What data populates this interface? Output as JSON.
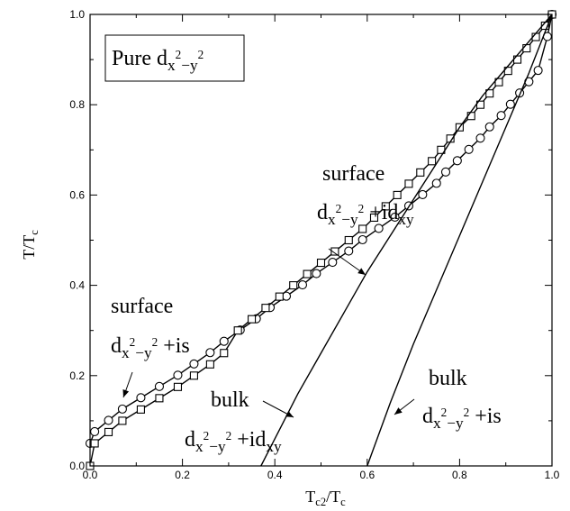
{
  "chart_data": {
    "type": "line",
    "xlabel": "T_c2/T_c",
    "ylabel": "T/T_c",
    "xlim": [
      0,
      1
    ],
    "ylim": [
      0,
      1
    ],
    "x_ticks": [
      "0.0",
      "0.2",
      "0.4",
      "0.6",
      "0.8",
      "1.0"
    ],
    "y_ticks": [
      "0.0",
      "0.2",
      "0.4",
      "0.6",
      "0.8",
      "1.0"
    ],
    "legend_box": "Pure d_{x²−y²}",
    "series": [
      {
        "marker": "circle",
        "x": [
          0.0,
          0.01,
          0.04,
          0.07,
          0.11,
          0.15,
          0.19,
          0.225,
          0.26,
          0.29,
          0.325,
          0.36,
          0.39,
          0.425,
          0.46,
          0.49,
          0.525,
          0.56,
          0.59,
          0.625,
          0.66,
          0.69,
          0.72,
          0.75,
          0.77,
          0.795,
          0.82,
          0.845,
          0.865,
          0.89,
          0.91,
          0.93,
          0.95,
          0.97,
          0.99,
          1.0
        ],
        "y": [
          0.05,
          0.076,
          0.101,
          0.126,
          0.151,
          0.176,
          0.201,
          0.226,
          0.251,
          0.276,
          0.301,
          0.326,
          0.351,
          0.376,
          0.401,
          0.426,
          0.451,
          0.476,
          0.501,
          0.526,
          0.551,
          0.576,
          0.601,
          0.626,
          0.651,
          0.676,
          0.701,
          0.726,
          0.751,
          0.776,
          0.801,
          0.826,
          0.851,
          0.876,
          0.951,
          1.0
        ]
      },
      {
        "marker": "square",
        "x": [
          0.0,
          0.01,
          0.04,
          0.07,
          0.11,
          0.15,
          0.19,
          0.225,
          0.26,
          0.29,
          0.32,
          0.35,
          0.38,
          0.41,
          0.44,
          0.47,
          0.5,
          0.53,
          0.56,
          0.59,
          0.615,
          0.64,
          0.665,
          0.69,
          0.715,
          0.74,
          0.76,
          0.78,
          0.8,
          0.825,
          0.845,
          0.865,
          0.885,
          0.905,
          0.925,
          0.945,
          0.965,
          0.985,
          1.0
        ],
        "y": [
          0.0,
          0.05,
          0.075,
          0.1,
          0.125,
          0.15,
          0.175,
          0.2,
          0.225,
          0.25,
          0.3,
          0.325,
          0.35,
          0.375,
          0.4,
          0.425,
          0.45,
          0.475,
          0.5,
          0.525,
          0.55,
          0.575,
          0.6,
          0.625,
          0.65,
          0.675,
          0.7,
          0.725,
          0.75,
          0.775,
          0.8,
          0.825,
          0.85,
          0.875,
          0.9,
          0.925,
          0.95,
          0.975,
          1.0
        ]
      },
      {
        "marker": "none",
        "x": [
          0.37,
          0.4,
          0.45,
          0.5,
          0.55,
          0.6,
          0.65,
          0.7,
          0.75,
          0.8,
          0.85,
          0.9,
          0.95,
          1.0
        ],
        "y": [
          0.0,
          0.06,
          0.16,
          0.25,
          0.34,
          0.43,
          0.51,
          0.59,
          0.67,
          0.75,
          0.82,
          0.88,
          0.94,
          1.0
        ]
      },
      {
        "marker": "none",
        "x": [
          0.6,
          0.65,
          0.7,
          0.75,
          0.8,
          0.85,
          0.9,
          0.95,
          1.0
        ],
        "y": [
          0.0,
          0.14,
          0.27,
          0.39,
          0.51,
          0.63,
          0.75,
          0.87,
          1.0
        ]
      }
    ],
    "annotations": [
      {
        "id": "surface-dd",
        "word": "surface",
        "sub1": "x",
        "sup1": "2",
        "dash": "−",
        "sub2": "y",
        "sup2": "2",
        "tail": " +id",
        "tail_sub": "xy"
      },
      {
        "id": "surface-ds",
        "word": "surface",
        "sub1": "x",
        "sup1": "2",
        "dash": "−",
        "sub2": "y",
        "sup2": "2",
        "tail": " +is",
        "tail_sub": ""
      },
      {
        "id": "bulk-dd",
        "word": "bulk",
        "sub1": "x",
        "sup1": "2",
        "dash": "−",
        "sub2": "y",
        "sup2": "2",
        "tail": " +id",
        "tail_sub": "xy"
      },
      {
        "id": "bulk-ds",
        "word": "bulk",
        "sub1": "x",
        "sup1": "2",
        "dash": "−",
        "sub2": "y",
        "sup2": "2",
        "tail": " +is",
        "tail_sub": ""
      }
    ],
    "pure_label": {
      "word": "Pure",
      "sub1": "x",
      "sup1": "2",
      "dash": "−",
      "sub2": "y",
      "sup2": "2"
    }
  }
}
